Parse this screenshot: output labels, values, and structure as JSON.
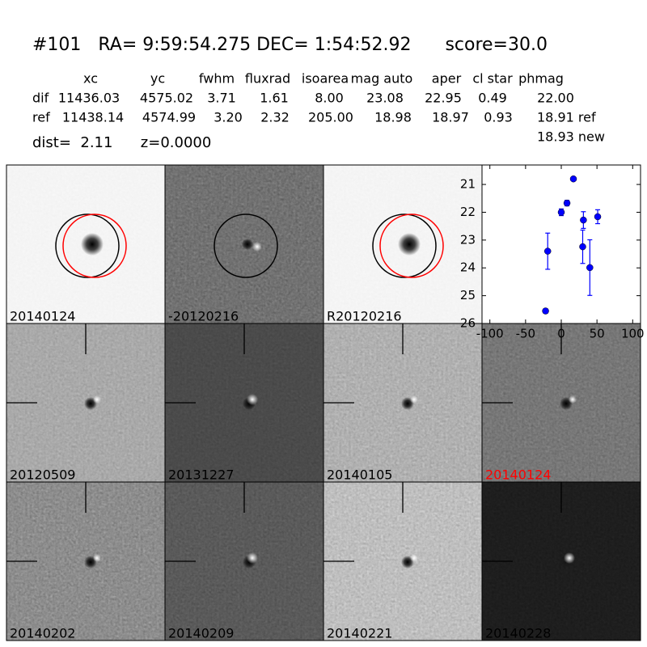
{
  "header": {
    "title": "#101   RA= 9:59:54.275 DEC= 1:54:52.92      score=30.0"
  },
  "table": {
    "columns": [
      "xc",
      "yc",
      "fwhm",
      "fluxrad",
      "isoarea",
      "mag auto",
      "aper",
      "cl star",
      "phmag"
    ],
    "rows": [
      [
        "dif",
        "11436.03",
        "4575.02",
        "3.71",
        "1.61",
        "8.00",
        "23.08",
        "22.95",
        "0.49",
        "22.00"
      ],
      [
        "ref",
        "11438.14",
        "4574.99",
        "3.20",
        "2.32",
        "205.00",
        "18.98",
        "18.97",
        "0.93",
        "18.91 ref"
      ]
    ],
    "extra": "18.93 new"
  },
  "dist_line": "dist=  2.11      z=0.0000",
  "panels": [
    "20140124",
    "-20120216",
    "R20120216",
    "20120509",
    "20131227",
    "20140105",
    "20140124",
    "20140202",
    "20140209",
    "20140221",
    "20140228"
  ],
  "chart_data": {
    "type": "errorbar",
    "series": [
      {
        "color": "#0000ff",
        "x": [
          -22,
          -19,
          0,
          8,
          17,
          30,
          31,
          40,
          51
        ],
        "values": [
          25.55,
          23.4,
          22.0,
          21.67,
          20.8,
          23.24,
          22.28,
          23.99,
          22.16
        ],
        "errors": [
          0.08,
          0.65,
          0.12,
          0.1,
          0.05,
          0.6,
          0.3,
          1.0,
          0.25
        ]
      }
    ],
    "xlim": [
      -111,
      111
    ],
    "xticks": [
      -100,
      -50,
      0,
      50,
      100
    ],
    "ylim": [
      26,
      20.3
    ],
    "yticks": [
      21,
      22,
      23,
      24,
      25,
      26
    ]
  }
}
